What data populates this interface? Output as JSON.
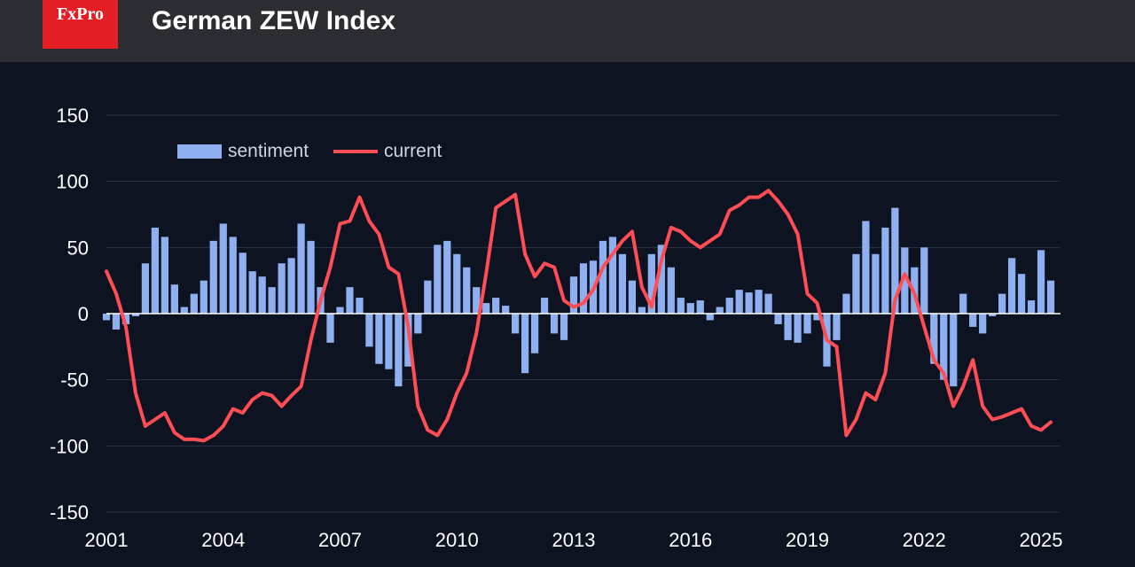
{
  "header": {
    "logo_text": "FxPro",
    "title": "German ZEW Index"
  },
  "colors": {
    "background": "#0d1320",
    "header": "#2b2d33",
    "logo": "#e31e24",
    "sentiment": "#8fb0f0",
    "current": "#ff4d55",
    "grid": "#2c3444"
  },
  "chart_data": {
    "type": "bar",
    "title": "German ZEW Index",
    "xlim": [
      2001,
      2025.5
    ],
    "ylim": [
      -150,
      150
    ],
    "yticks": [
      150,
      100,
      50,
      0,
      -50,
      -100,
      -150
    ],
    "xticks": [
      2001,
      2004,
      2007,
      2010,
      2013,
      2016,
      2019,
      2022,
      2025
    ],
    "grid": true,
    "legend_position": "top-left",
    "series": [
      {
        "name": "sentiment",
        "type": "bar",
        "points": [
          [
            2001.0,
            -5
          ],
          [
            2001.25,
            -12
          ],
          [
            2001.5,
            -8
          ],
          [
            2001.75,
            -2
          ],
          [
            2002.0,
            38
          ],
          [
            2002.25,
            65
          ],
          [
            2002.5,
            58
          ],
          [
            2002.75,
            22
          ],
          [
            2003.0,
            5
          ],
          [
            2003.25,
            15
          ],
          [
            2003.5,
            25
          ],
          [
            2003.75,
            55
          ],
          [
            2004.0,
            68
          ],
          [
            2004.25,
            58
          ],
          [
            2004.5,
            46
          ],
          [
            2004.75,
            32
          ],
          [
            2005.0,
            28
          ],
          [
            2005.25,
            20
          ],
          [
            2005.5,
            38
          ],
          [
            2005.75,
            42
          ],
          [
            2006.0,
            68
          ],
          [
            2006.25,
            55
          ],
          [
            2006.5,
            20
          ],
          [
            2006.75,
            -22
          ],
          [
            2007.0,
            5
          ],
          [
            2007.25,
            20
          ],
          [
            2007.5,
            12
          ],
          [
            2007.75,
            -25
          ],
          [
            2008.0,
            -38
          ],
          [
            2008.25,
            -42
          ],
          [
            2008.5,
            -55
          ],
          [
            2008.75,
            -40
          ],
          [
            2009.0,
            -15
          ],
          [
            2009.25,
            25
          ],
          [
            2009.5,
            52
          ],
          [
            2009.75,
            55
          ],
          [
            2010.0,
            45
          ],
          [
            2010.25,
            35
          ],
          [
            2010.5,
            20
          ],
          [
            2010.75,
            8
          ],
          [
            2011.0,
            12
          ],
          [
            2011.25,
            6
          ],
          [
            2011.5,
            -15
          ],
          [
            2011.75,
            -45
          ],
          [
            2012.0,
            -30
          ],
          [
            2012.25,
            12
          ],
          [
            2012.5,
            -15
          ],
          [
            2012.75,
            -20
          ],
          [
            2013.0,
            28
          ],
          [
            2013.25,
            38
          ],
          [
            2013.5,
            40
          ],
          [
            2013.75,
            55
          ],
          [
            2014.0,
            58
          ],
          [
            2014.25,
            45
          ],
          [
            2014.5,
            25
          ],
          [
            2014.75,
            5
          ],
          [
            2015.0,
            45
          ],
          [
            2015.25,
            52
          ],
          [
            2015.5,
            35
          ],
          [
            2015.75,
            12
          ],
          [
            2016.0,
            8
          ],
          [
            2016.25,
            10
          ],
          [
            2016.5,
            -5
          ],
          [
            2016.75,
            5
          ],
          [
            2017.0,
            12
          ],
          [
            2017.25,
            18
          ],
          [
            2017.5,
            16
          ],
          [
            2017.75,
            18
          ],
          [
            2018.0,
            15
          ],
          [
            2018.25,
            -8
          ],
          [
            2018.5,
            -20
          ],
          [
            2018.75,
            -22
          ],
          [
            2019.0,
            -15
          ],
          [
            2019.25,
            -5
          ],
          [
            2019.5,
            -40
          ],
          [
            2019.75,
            -20
          ],
          [
            2020.0,
            15
          ],
          [
            2020.25,
            45
          ],
          [
            2020.5,
            70
          ],
          [
            2020.75,
            45
          ],
          [
            2021.0,
            65
          ],
          [
            2021.25,
            80
          ],
          [
            2021.5,
            50
          ],
          [
            2021.75,
            35
          ],
          [
            2022.0,
            50
          ],
          [
            2022.25,
            -38
          ],
          [
            2022.5,
            -50
          ],
          [
            2022.75,
            -55
          ],
          [
            2023.0,
            15
          ],
          [
            2023.25,
            -10
          ],
          [
            2023.5,
            -15
          ],
          [
            2023.75,
            -2
          ],
          [
            2024.0,
            15
          ],
          [
            2024.25,
            42
          ],
          [
            2024.5,
            30
          ],
          [
            2024.75,
            10
          ],
          [
            2025.0,
            48
          ],
          [
            2025.25,
            25
          ]
        ]
      },
      {
        "name": "current",
        "type": "line",
        "points": [
          [
            2001.0,
            32
          ],
          [
            2001.25,
            15
          ],
          [
            2001.5,
            -10
          ],
          [
            2001.75,
            -60
          ],
          [
            2002.0,
            -85
          ],
          [
            2002.25,
            -80
          ],
          [
            2002.5,
            -75
          ],
          [
            2002.75,
            -90
          ],
          [
            2003.0,
            -95
          ],
          [
            2003.25,
            -95
          ],
          [
            2003.5,
            -96
          ],
          [
            2003.75,
            -92
          ],
          [
            2004.0,
            -85
          ],
          [
            2004.25,
            -72
          ],
          [
            2004.5,
            -75
          ],
          [
            2004.75,
            -65
          ],
          [
            2005.0,
            -60
          ],
          [
            2005.25,
            -62
          ],
          [
            2005.5,
            -70
          ],
          [
            2005.75,
            -62
          ],
          [
            2006.0,
            -55
          ],
          [
            2006.25,
            -20
          ],
          [
            2006.5,
            10
          ],
          [
            2006.75,
            35
          ],
          [
            2007.0,
            68
          ],
          [
            2007.25,
            70
          ],
          [
            2007.5,
            88
          ],
          [
            2007.75,
            70
          ],
          [
            2008.0,
            60
          ],
          [
            2008.25,
            35
          ],
          [
            2008.5,
            30
          ],
          [
            2008.75,
            -10
          ],
          [
            2009.0,
            -70
          ],
          [
            2009.25,
            -88
          ],
          [
            2009.5,
            -92
          ],
          [
            2009.75,
            -80
          ],
          [
            2010.0,
            -60
          ],
          [
            2010.25,
            -45
          ],
          [
            2010.5,
            -15
          ],
          [
            2010.75,
            30
          ],
          [
            2011.0,
            80
          ],
          [
            2011.25,
            85
          ],
          [
            2011.5,
            90
          ],
          [
            2011.75,
            45
          ],
          [
            2012.0,
            28
          ],
          [
            2012.25,
            38
          ],
          [
            2012.5,
            35
          ],
          [
            2012.75,
            10
          ],
          [
            2013.0,
            5
          ],
          [
            2013.25,
            8
          ],
          [
            2013.5,
            18
          ],
          [
            2013.75,
            35
          ],
          [
            2014.0,
            45
          ],
          [
            2014.25,
            55
          ],
          [
            2014.5,
            62
          ],
          [
            2014.75,
            20
          ],
          [
            2015.0,
            5
          ],
          [
            2015.25,
            40
          ],
          [
            2015.5,
            65
          ],
          [
            2015.75,
            62
          ],
          [
            2016.0,
            55
          ],
          [
            2016.25,
            50
          ],
          [
            2016.5,
            55
          ],
          [
            2016.75,
            60
          ],
          [
            2017.0,
            78
          ],
          [
            2017.25,
            82
          ],
          [
            2017.5,
            88
          ],
          [
            2017.75,
            88
          ],
          [
            2018.0,
            93
          ],
          [
            2018.25,
            85
          ],
          [
            2018.5,
            75
          ],
          [
            2018.75,
            60
          ],
          [
            2019.0,
            15
          ],
          [
            2019.25,
            8
          ],
          [
            2019.5,
            -20
          ],
          [
            2019.75,
            -25
          ],
          [
            2020.0,
            -92
          ],
          [
            2020.25,
            -80
          ],
          [
            2020.5,
            -60
          ],
          [
            2020.75,
            -65
          ],
          [
            2021.0,
            -45
          ],
          [
            2021.25,
            10
          ],
          [
            2021.5,
            30
          ],
          [
            2021.75,
            15
          ],
          [
            2022.0,
            -10
          ],
          [
            2022.25,
            -35
          ],
          [
            2022.5,
            -45
          ],
          [
            2022.75,
            -70
          ],
          [
            2023.0,
            -55
          ],
          [
            2023.25,
            -35
          ],
          [
            2023.5,
            -70
          ],
          [
            2023.75,
            -80
          ],
          [
            2024.0,
            -78
          ],
          [
            2024.25,
            -75
          ],
          [
            2024.5,
            -72
          ],
          [
            2024.75,
            -85
          ],
          [
            2025.0,
            -88
          ],
          [
            2025.25,
            -82
          ]
        ]
      }
    ]
  }
}
